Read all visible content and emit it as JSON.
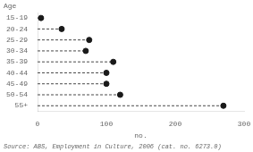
{
  "chart_data": {
    "type": "lollipop",
    "orientation": "horizontal",
    "categories": [
      "15-19",
      "20-24",
      "25-29",
      "30-34",
      "35-39",
      "40-44",
      "45-49",
      "50-54",
      "55+"
    ],
    "values": [
      5,
      35,
      75,
      70,
      110,
      100,
      100,
      120,
      270
    ],
    "color": "#1a1a1a",
    "line_style": "dashed",
    "marker": "circle",
    "xlabel": "no.",
    "ylabel": "Age",
    "xlim": [
      0,
      300
    ],
    "xticks": [
      0,
      100,
      200,
      300
    ],
    "grid": false,
    "annotations": [
      "Source: ABS, Employment in Culture, 2006 (cat. no. 6273.0)"
    ]
  }
}
